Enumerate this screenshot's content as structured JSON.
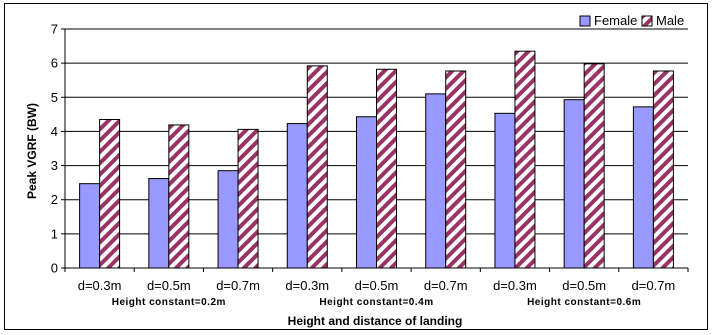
{
  "chart_data": {
    "type": "bar",
    "categories": [
      "d=0.3m",
      "d=0.5m",
      "d=0.7m",
      "d=0.3m",
      "d=0.5m",
      "d=0.7m",
      "d=0.3m",
      "d=0.5m",
      "d=0.7m"
    ],
    "groups": [
      {
        "label": "Height constant=0.2m"
      },
      {
        "label": "Height constant=0.4m"
      },
      {
        "label": "Height constant=0.6m"
      }
    ],
    "series": [
      {
        "name": "Female",
        "color": "#9999ff",
        "pattern": "solid",
        "values": [
          2.47,
          2.62,
          2.85,
          4.23,
          4.43,
          5.1,
          4.53,
          4.93,
          4.72
        ]
      },
      {
        "name": "Male",
        "color": "#993366",
        "pattern": "diagonal-hatch",
        "values": [
          4.35,
          4.19,
          4.06,
          5.92,
          5.82,
          5.77,
          6.35,
          5.98,
          5.77
        ]
      }
    ],
    "title": "",
    "xlabel": "Height and distance of landing",
    "ylabel": "Peak VGRF (BW)",
    "ylim": [
      0,
      7
    ],
    "yticks": [
      "0",
      "1",
      "2",
      "3",
      "4",
      "5",
      "6",
      "7"
    ],
    "grid": true,
    "legend": "top-right"
  }
}
